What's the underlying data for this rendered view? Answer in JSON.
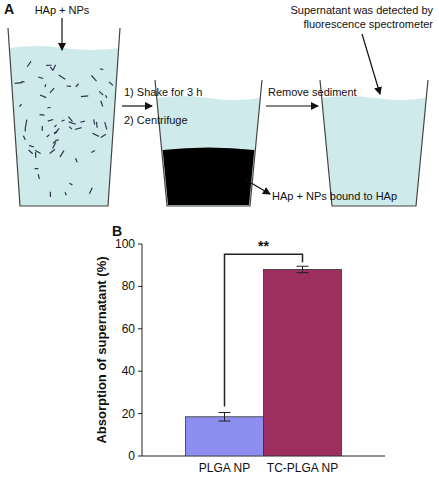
{
  "diagram": {
    "panel_label": "A",
    "input_label": "HAp + NPs",
    "step1": [
      "1) Shake for 3 h",
      "2) Centrifuge"
    ],
    "step2": "Remove sediment",
    "sediment_label": "HAp + NPs bound to HAp",
    "detection_label": [
      "Supernatant was detected by",
      "fluorescence spectrometer"
    ]
  },
  "chart_data": {
    "type": "bar",
    "panel_label": "B",
    "ylabel": "Absorption of supernatant (%)",
    "categories": [
      "PLGA NP",
      "TC-PLGA NP"
    ],
    "values": [
      18.5,
      88
    ],
    "errors": [
      2,
      1.5
    ],
    "colors": [
      "#8e8ef0",
      "#9c2e60"
    ],
    "ylim": [
      0,
      100
    ],
    "yticks": [
      0,
      20,
      40,
      60,
      80,
      100
    ],
    "annotation": "**",
    "grid": false
  }
}
